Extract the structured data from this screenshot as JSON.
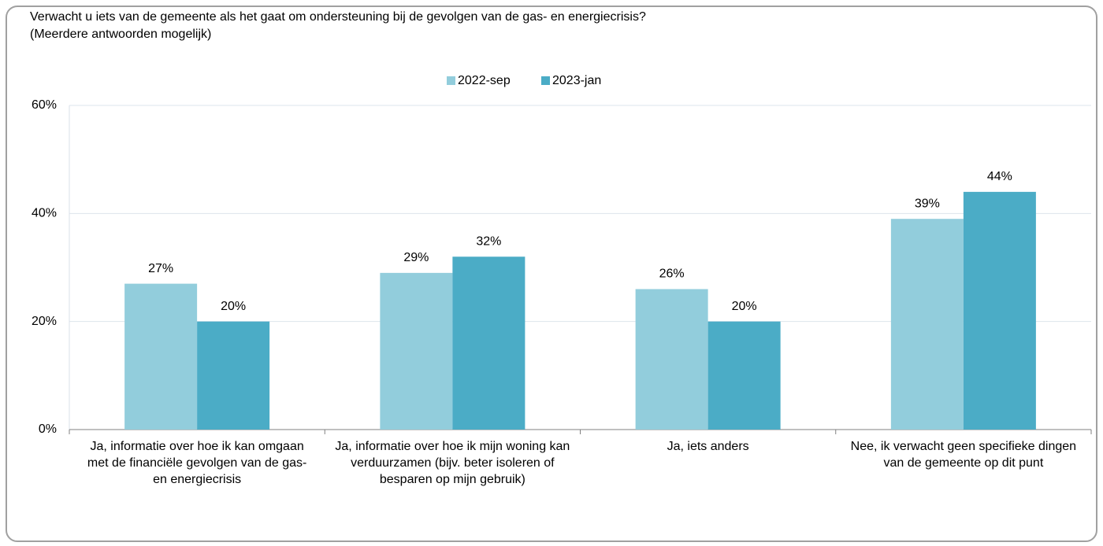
{
  "chart_data": {
    "type": "bar",
    "title": "Verwacht u iets van de gemeente als het gaat om ondersteuning bij de gevolgen van de gas- en energiecrisis?",
    "subtitle": "(Meerdere antwoorden mogelijk)",
    "categories": [
      "Ja, informatie over hoe ik kan omgaan met de financiële gevolgen van de gas- en energiecrisis",
      "Ja, informatie over hoe ik mijn woning kan verduurzamen (bijv. beter isoleren of besparen op mijn gebruik)",
      "Ja, iets anders",
      "Nee, ik verwacht geen specifieke dingen van de gemeente op dit punt"
    ],
    "series": [
      {
        "name": "2022-sep",
        "color": "#92cddc",
        "values": [
          27,
          29,
          26,
          39
        ],
        "value_labels": [
          "27%",
          "29%",
          "26%",
          "39%"
        ]
      },
      {
        "name": "2023-jan",
        "color": "#4bacc6",
        "values": [
          20,
          32,
          20,
          44
        ],
        "value_labels": [
          "20%",
          "32%",
          "20%",
          "44%"
        ]
      }
    ],
    "ylim": [
      0,
      60
    ],
    "yticks": [
      {
        "value": 0,
        "label": "0%"
      },
      {
        "value": 20,
        "label": "20%"
      },
      {
        "value": 40,
        "label": "40%"
      },
      {
        "value": 60,
        "label": "60%"
      }
    ],
    "grid": true,
    "legend": "top"
  }
}
